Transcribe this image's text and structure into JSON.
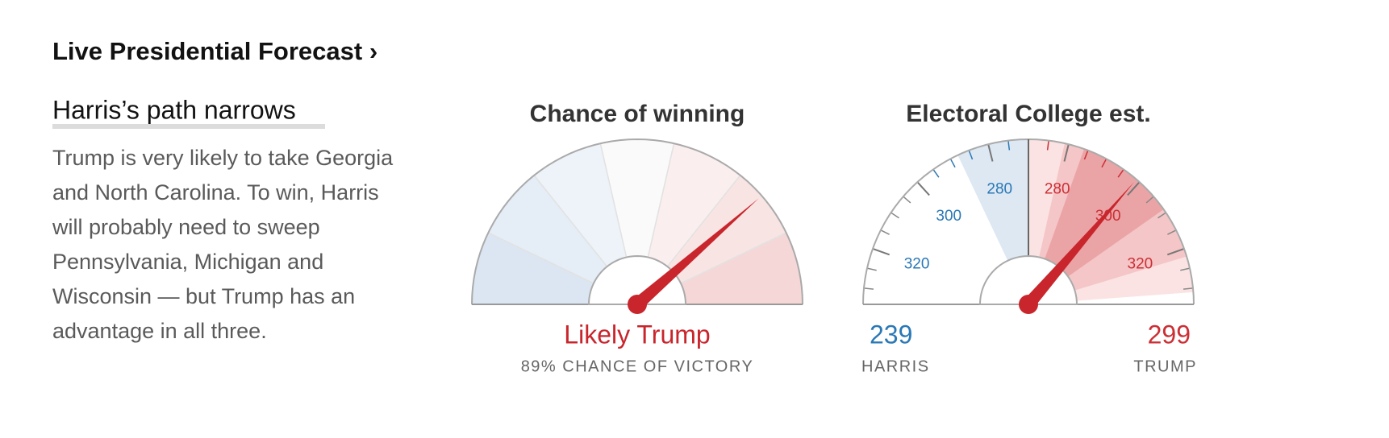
{
  "header": {
    "title": "Live Presidential Forecast ›"
  },
  "story": {
    "headline": "Harris’s path narrows",
    "lines": [
      "Trump is very likely to take Georgia",
      "and North Carolina. To win, Harris",
      "will probably need to sweep",
      "Pennsylvania, Michigan and",
      "Wisconsin — but Trump has an",
      "advantage in all three."
    ]
  },
  "chance": {
    "title": "Chance of winning",
    "value": 89,
    "verdict": "Likely Trump",
    "caption": "89% CHANCE OF VICTORY",
    "needle_color": "#c8252c",
    "segments": [
      {
        "from": 0,
        "to": 5,
        "color": "#dbe6f2"
      },
      {
        "from": 5,
        "to": 15,
        "color": "#e5edf6"
      },
      {
        "from": 15,
        "to": 35,
        "color": "#eef3f9"
      },
      {
        "from": 35,
        "to": 65,
        "color": "#fafafa"
      },
      {
        "from": 65,
        "to": 85,
        "color": "#fbeeee"
      },
      {
        "from": 85,
        "to": 95,
        "color": "#f9e4e4"
      },
      {
        "from": 95,
        "to": 100,
        "color": "#f6d7d7"
      }
    ]
  },
  "electoral": {
    "title": "Electoral College est.",
    "lim": [
      270,
      334
    ],
    "harris": {
      "value": 239,
      "name": "HARRIS",
      "color": "#2a78b6",
      "ticks": [
        280,
        300,
        320
      ],
      "bands": [
        {
          "range": [
            270,
            288
          ],
          "color": "#dde8f3"
        }
      ]
    },
    "trump": {
      "value": 299,
      "name": "TRUMP",
      "color": "#cc2f35",
      "ticks": [
        280,
        300,
        320
      ],
      "bands": [
        {
          "range": [
            270,
            331
          ],
          "color": "#fbe3e3"
        },
        {
          "range": [
            279,
            322
          ],
          "color": "#f4c6c7"
        },
        {
          "range": [
            284,
            309
          ],
          "color": "#eaa4a6"
        }
      ]
    },
    "needle_color": "#c8252c"
  }
}
